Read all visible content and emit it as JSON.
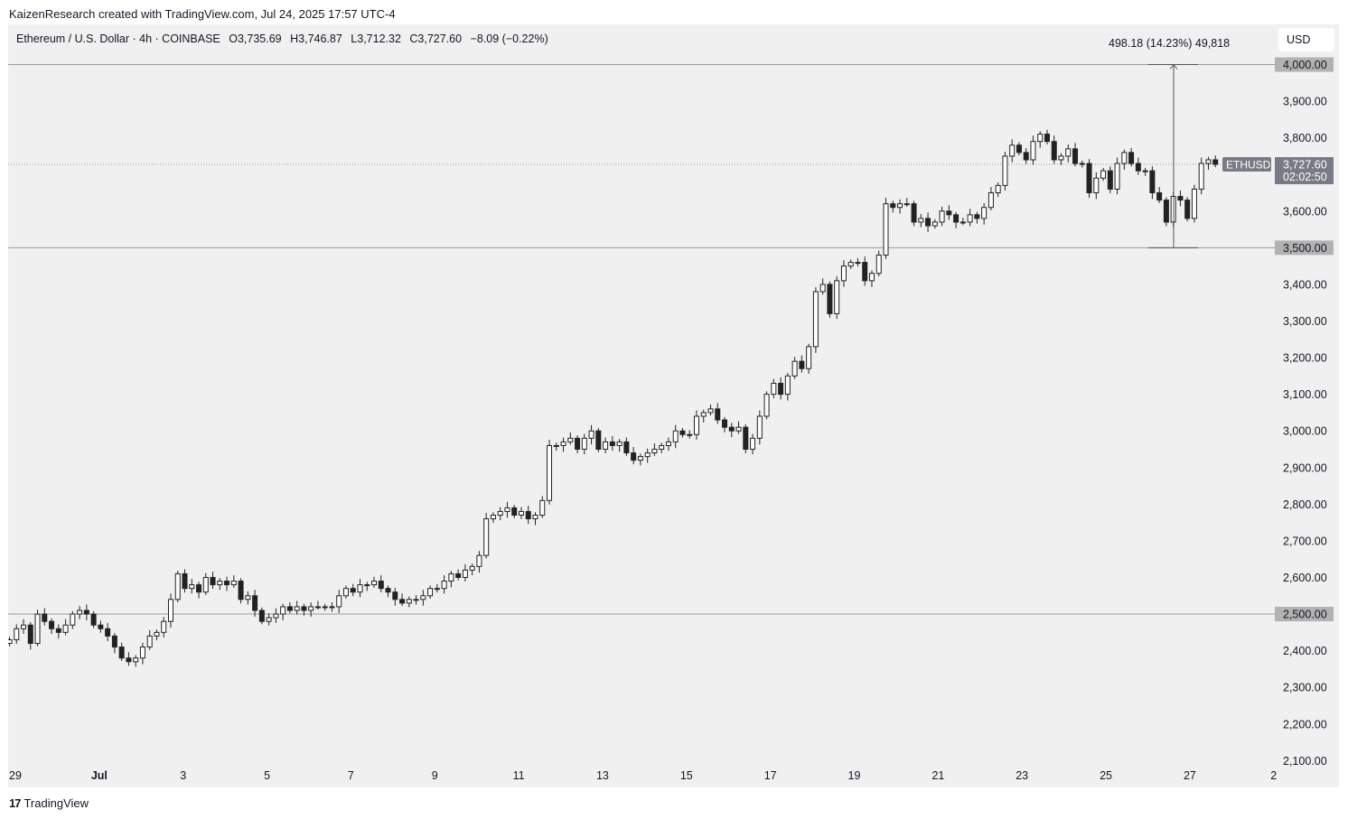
{
  "attribution": "KaizenResearch created with TradingView.com, Jul 24, 2025 17:57 UTC-4",
  "symbol": {
    "name": "Ethereum / U.S. Dollar · 4h · COINBASE",
    "open": "O3,735.69",
    "high": "H3,746.87",
    "low": "L3,712.32",
    "close": "C3,727.60",
    "change": "−8.09 (−0.22%)"
  },
  "currency": "USD",
  "measure": {
    "label": "498.18 (14.23%) 49,818",
    "from": 3500,
    "to": 4000
  },
  "footer": {
    "brand": "TradingView",
    "logo_mark": "17"
  },
  "colors": {
    "background": "#f0f0f0",
    "candle_up": "#ffffff",
    "candle_down": "#222222",
    "wick": "#222222",
    "level_line": "#9a9a9a",
    "price_tag": "#787b86"
  },
  "chart_data": {
    "type": "candlestick",
    "interval": "4h",
    "ylim": [
      2100,
      4100
    ],
    "y_ticks": [
      2100,
      2200,
      2300,
      2400,
      2500,
      2600,
      2700,
      2800,
      2900,
      3000,
      3100,
      3200,
      3300,
      3400,
      3500,
      3600,
      3700,
      3800,
      3900,
      4000
    ],
    "y_tick_labels": [
      "2,100.00",
      "2,200.00",
      "2,300.00",
      "2,400.00",
      "2,500.00",
      "2,600.00",
      "2,700.00",
      "2,800.00",
      "2,900.00",
      "3,000.00",
      "3,100.00",
      "3,200.00",
      "3,300.00",
      "3,400.00",
      "3,500.00",
      "3,600.00",
      "3,700.00",
      "3,800.00",
      "3,900.00",
      "4,000.00"
    ],
    "x_tick_labels": [
      "29",
      "Jul",
      "3",
      "5",
      "7",
      "9",
      "11",
      "13",
      "15",
      "17",
      "19",
      "21",
      "23",
      "25",
      "27",
      "2"
    ],
    "horizontal_levels": [
      {
        "value": 4000,
        "label": "4,000.00"
      },
      {
        "value": 3500,
        "label": "3,500.00"
      },
      {
        "value": 2500,
        "label": "2,500.00"
      }
    ],
    "last_price": {
      "symbol": "ETHUSD",
      "value": 3727.6,
      "label": "3,727.60",
      "countdown": "02:02:50"
    },
    "close_values": [
      2430,
      2460,
      2470,
      2420,
      2500,
      2480,
      2460,
      2450,
      2470,
      2500,
      2510,
      2500,
      2470,
      2460,
      2440,
      2410,
      2380,
      2370,
      2380,
      2410,
      2440,
      2450,
      2480,
      2540,
      2610,
      2570,
      2580,
      2560,
      2600,
      2580,
      2590,
      2580,
      2590,
      2540,
      2550,
      2510,
      2480,
      2490,
      2500,
      2520,
      2510,
      2520,
      2510,
      2520,
      2520,
      2520,
      2520,
      2550,
      2570,
      2560,
      2580,
      2580,
      2590,
      2570,
      2560,
      2540,
      2530,
      2540,
      2540,
      2550,
      2570,
      2570,
      2590,
      2610,
      2600,
      2620,
      2630,
      2660,
      2760,
      2770,
      2780,
      2790,
      2770,
      2780,
      2760,
      2770,
      2810,
      2960,
      2960,
      2970,
      2980,
      2950,
      2980,
      3000,
      2950,
      2970,
      2960,
      2970,
      2940,
      2920,
      2930,
      2940,
      2950,
      2960,
      2970,
      3000,
      2990,
      2990,
      3040,
      3050,
      3060,
      3030,
      3010,
      3000,
      3010,
      2950,
      2980,
      3040,
      3100,
      3130,
      3100,
      3150,
      3190,
      3170,
      3230,
      3380,
      3400,
      3320,
      3410,
      3450,
      3460,
      3460,
      3410,
      3430,
      3480,
      3620,
      3610,
      3620,
      3620,
      3570,
      3580,
      3560,
      3570,
      3600,
      3590,
      3570,
      3570,
      3590,
      3580,
      3610,
      3650,
      3670,
      3750,
      3780,
      3760,
      3740,
      3790,
      3810,
      3790,
      3740,
      3750,
      3770,
      3730,
      3730,
      3650,
      3690,
      3710,
      3660,
      3730,
      3760,
      3730,
      3710,
      3710,
      3650,
      3630,
      3570,
      3640,
      3630,
      3580,
      3660,
      3730,
      3740,
      3727.6
    ]
  }
}
